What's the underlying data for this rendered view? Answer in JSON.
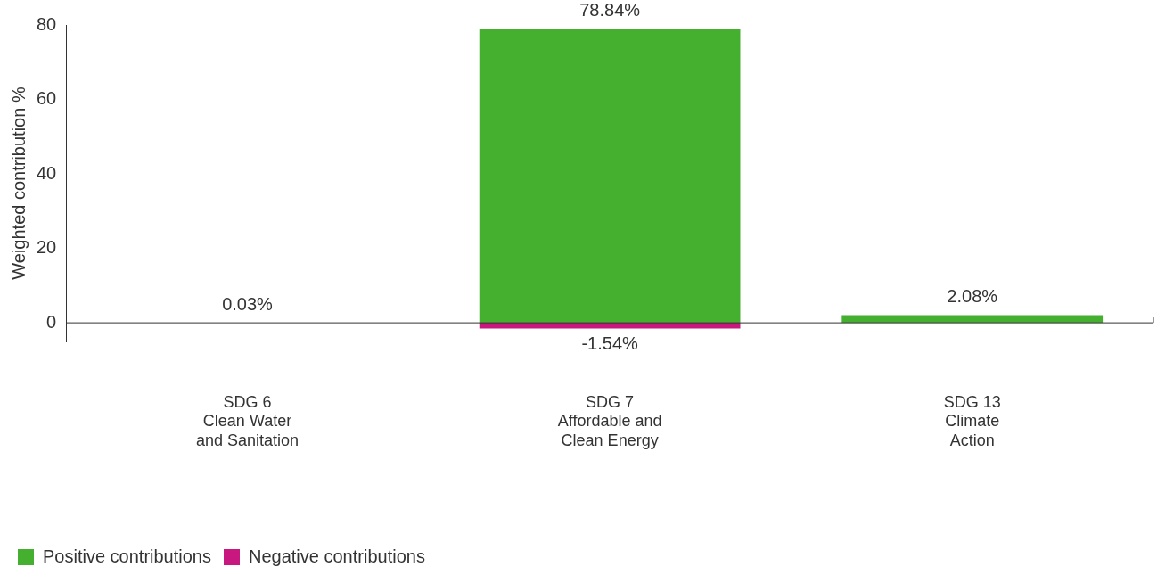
{
  "chart_data": {
    "type": "bar",
    "ylabel": "Weighted contribution %",
    "categories": [
      "SDG 6\nClean Water\nand Sanitation",
      "SDG 7\nAffordable and\nClean Energy",
      "SDG 13\nClimate\nAction"
    ],
    "series": [
      {
        "name": "Positive contributions",
        "color": "#45b02f",
        "values": [
          0.03,
          78.84,
          2.08
        ],
        "value_labels": [
          "0.03%",
          "78.84%",
          "2.08%"
        ]
      },
      {
        "name": "Negative contributions",
        "color": "#c8187f",
        "values": [
          null,
          -1.54,
          null
        ],
        "value_labels": [
          null,
          "-1.54%",
          null
        ]
      }
    ],
    "stacked": true,
    "ylim": [
      -5,
      80
    ],
    "yticks": [
      0,
      20,
      40,
      60,
      80
    ],
    "grid": false,
    "ref_lines": [
      {
        "axis": "y",
        "value": 0,
        "color": "#333333"
      }
    ],
    "legend": "bottom left"
  }
}
